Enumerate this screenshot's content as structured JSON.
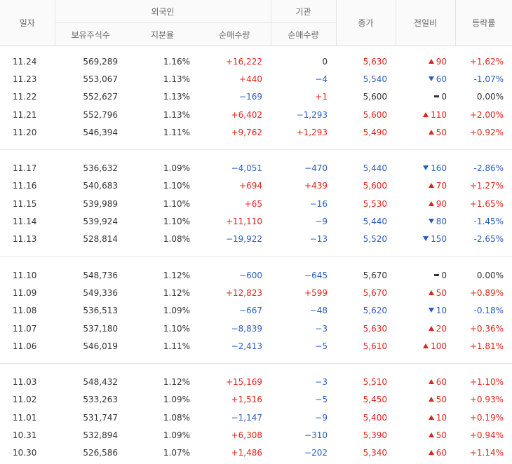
{
  "headers": {
    "date": "일자",
    "foreign": "외국인",
    "institution": "기관",
    "close": "종가",
    "change": "전일비",
    "rate": "등락률",
    "holdings": "보유주식수",
    "share_ratio": "지분율",
    "net_foreign": "순매수량",
    "net_institution": "순매수량"
  },
  "colors": {
    "up": "#e0241b",
    "down": "#2a5dc0",
    "flat": "#333333"
  },
  "groups": [
    [
      {
        "date": "11.24",
        "holdings": "569,289",
        "ratio": "1.16%",
        "foreign": "+16,222",
        "inst": "0",
        "close": "5,630",
        "change": "90",
        "dir": "up",
        "rate": "+1.62%"
      },
      {
        "date": "11.23",
        "holdings": "553,067",
        "ratio": "1.13%",
        "foreign": "+440",
        "inst": "−4",
        "close": "5,540",
        "change": "60",
        "dir": "down",
        "rate": "-1.07%"
      },
      {
        "date": "11.22",
        "holdings": "552,627",
        "ratio": "1.13%",
        "foreign": "−169",
        "inst": "+1",
        "close": "5,600",
        "change": "0",
        "dir": "flat",
        "rate": "0.00%"
      },
      {
        "date": "11.21",
        "holdings": "552,796",
        "ratio": "1.13%",
        "foreign": "+6,402",
        "inst": "−1,293",
        "close": "5,600",
        "change": "110",
        "dir": "up",
        "rate": "+2.00%"
      },
      {
        "date": "11.20",
        "holdings": "546,394",
        "ratio": "1.11%",
        "foreign": "+9,762",
        "inst": "+1,293",
        "close": "5,490",
        "change": "50",
        "dir": "up",
        "rate": "+0.92%"
      }
    ],
    [
      {
        "date": "11.17",
        "holdings": "536,632",
        "ratio": "1.09%",
        "foreign": "−4,051",
        "inst": "−470",
        "close": "5,440",
        "change": "160",
        "dir": "down",
        "rate": "-2.86%"
      },
      {
        "date": "11.16",
        "holdings": "540,683",
        "ratio": "1.10%",
        "foreign": "+694",
        "inst": "+439",
        "close": "5,600",
        "change": "70",
        "dir": "up",
        "rate": "+1.27%"
      },
      {
        "date": "11.15",
        "holdings": "539,989",
        "ratio": "1.10%",
        "foreign": "+65",
        "inst": "−16",
        "close": "5,530",
        "change": "90",
        "dir": "up",
        "rate": "+1.65%"
      },
      {
        "date": "11.14",
        "holdings": "539,924",
        "ratio": "1.10%",
        "foreign": "+11,110",
        "inst": "−9",
        "close": "5,440",
        "change": "80",
        "dir": "down",
        "rate": "-1.45%"
      },
      {
        "date": "11.13",
        "holdings": "528,814",
        "ratio": "1.08%",
        "foreign": "−19,922",
        "inst": "−13",
        "close": "5,520",
        "change": "150",
        "dir": "down",
        "rate": "-2.65%"
      }
    ],
    [
      {
        "date": "11.10",
        "holdings": "548,736",
        "ratio": "1.12%",
        "foreign": "−600",
        "inst": "−645",
        "close": "5,670",
        "change": "0",
        "dir": "flat",
        "rate": "0.00%"
      },
      {
        "date": "11.09",
        "holdings": "549,336",
        "ratio": "1.12%",
        "foreign": "+12,823",
        "inst": "+599",
        "close": "5,670",
        "change": "50",
        "dir": "up",
        "rate": "+0.89%"
      },
      {
        "date": "11.08",
        "holdings": "536,513",
        "ratio": "1.09%",
        "foreign": "−667",
        "inst": "−48",
        "close": "5,620",
        "change": "10",
        "dir": "down",
        "rate": "-0.18%"
      },
      {
        "date": "11.07",
        "holdings": "537,180",
        "ratio": "1.10%",
        "foreign": "−8,839",
        "inst": "−3",
        "close": "5,630",
        "change": "20",
        "dir": "up",
        "rate": "+0.36%"
      },
      {
        "date": "11.06",
        "holdings": "546,019",
        "ratio": "1.11%",
        "foreign": "−2,413",
        "inst": "−5",
        "close": "5,610",
        "change": "100",
        "dir": "up",
        "rate": "+1.81%"
      }
    ],
    [
      {
        "date": "11.03",
        "holdings": "548,432",
        "ratio": "1.12%",
        "foreign": "+15,169",
        "inst": "−3",
        "close": "5,510",
        "change": "60",
        "dir": "up",
        "rate": "+1.10%"
      },
      {
        "date": "11.02",
        "holdings": "533,263",
        "ratio": "1.09%",
        "foreign": "+1,516",
        "inst": "−5",
        "close": "5,450",
        "change": "50",
        "dir": "up",
        "rate": "+0.93%"
      },
      {
        "date": "11.01",
        "holdings": "531,747",
        "ratio": "1.08%",
        "foreign": "−1,147",
        "inst": "−9",
        "close": "5,400",
        "change": "10",
        "dir": "up",
        "rate": "+0.19%"
      },
      {
        "date": "10.31",
        "holdings": "532,894",
        "ratio": "1.09%",
        "foreign": "+6,308",
        "inst": "−310",
        "close": "5,390",
        "change": "50",
        "dir": "up",
        "rate": "+0.94%"
      },
      {
        "date": "10.30",
        "holdings": "526,586",
        "ratio": "1.07%",
        "foreign": "+1,486",
        "inst": "−202",
        "close": "5,340",
        "change": "60",
        "dir": "up",
        "rate": "+1.14%"
      }
    ]
  ]
}
